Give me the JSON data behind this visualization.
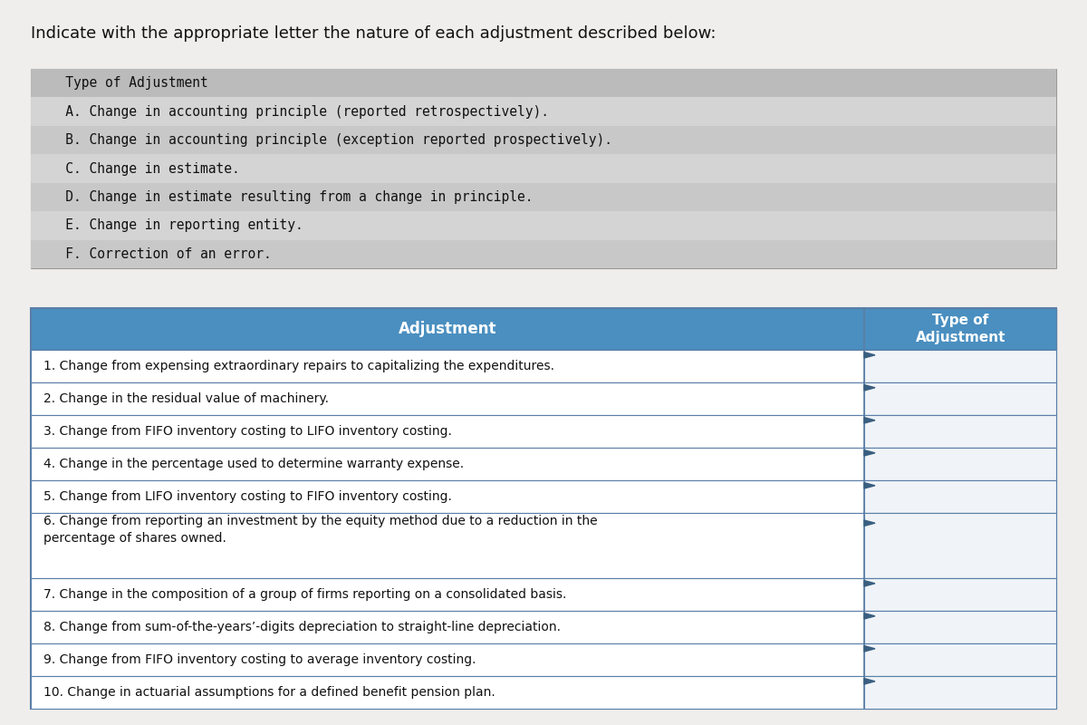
{
  "title_text": "Indicate with the appropriate letter the nature of each adjustment described below:",
  "bg_color": "#f0eeec",
  "type_section_bg": "#cccccc",
  "type_section_header_bg": "#bbbbbb",
  "type_section_header": "   Type of Adjustment",
  "type_items": [
    "   A. Change in accounting principle (reported retrospectively).",
    "   B. Change in accounting principle (exception reported prospectively).",
    "   C. Change in estimate.",
    "   D. Change in estimate resulting from a change in principle.",
    "   E. Change in reporting entity.",
    "   F. Correction of an error."
  ],
  "type_item_bgs": [
    "#d4d4d4",
    "#c8c8c8",
    "#d4d4d4",
    "#c8c8c8",
    "#d4d4d4",
    "#c8c8c8"
  ],
  "table_header_bg": "#4a8fc0",
  "table_header_text_color": "#ffffff",
  "table_border_color": "#5a7fa8",
  "table_col1_header": "Adjustment",
  "table_col2_header": "Type of\nAdjustment",
  "adjustments": [
    "1. Change from expensing extraordinary repairs to capitalizing the expenditures.",
    "2. Change in the residual value of machinery.",
    "3. Change from FIFO inventory costing to LIFO inventory costing.",
    "4. Change in the percentage used to determine warranty expense.",
    "5. Change from LIFO inventory costing to FIFO inventory costing.",
    "6. Change from reporting an investment by the equity method due to a reduction in the\npercentage of shares owned.",
    "7. Change in the composition of a group of firms reporting on a consolidated basis.",
    "8. Change from sum-of-the-years’-digits depreciation to straight-line depreciation.",
    "9. Change from FIFO inventory costing to average inventory costing.",
    "10. Change in actuarial assumptions for a defined benefit pension plan."
  ],
  "row_heights": [
    1,
    1,
    1,
    1,
    1,
    2,
    1,
    1,
    1,
    1
  ],
  "arrow_color": "#3a5f80",
  "font_mono": "monospace",
  "font_sans": "DejaVu Sans"
}
